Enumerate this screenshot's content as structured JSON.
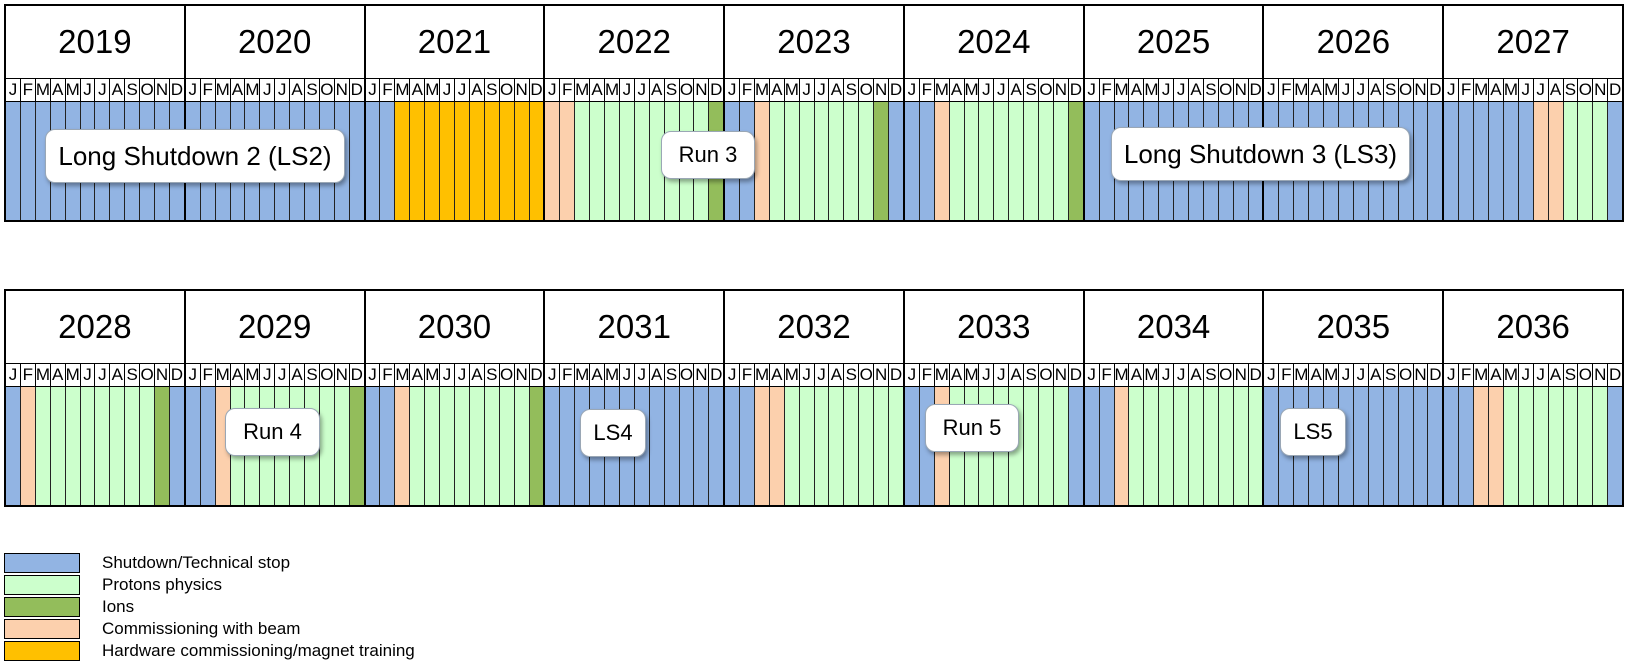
{
  "colors": {
    "S": "#92b4e3",
    "P": "#ccffcc",
    "I": "#93bd5b",
    "C": "#fcd0ad",
    "H": "#ffc000"
  },
  "month_letters": [
    "J",
    "F",
    "M",
    "A",
    "M",
    "J",
    "J",
    "A",
    "S",
    "O",
    "N",
    "D"
  ],
  "rows": [
    {
      "years": [
        {
          "label": "2019",
          "months": "SSSSSSSSSSSS"
        },
        {
          "label": "2020",
          "months": "SSSSSSSSSSSS"
        },
        {
          "label": "2021",
          "months": "SSHHHHHHHHHH"
        },
        {
          "label": "2022",
          "months": "CCPPPPPPPPPI"
        },
        {
          "label": "2023",
          "months": "SSCPPPPPPPIS"
        },
        {
          "label": "2024",
          "months": "SSCPPPPPPPPI"
        },
        {
          "label": "2025",
          "months": "SSSSSSSSSSSS"
        },
        {
          "label": "2026",
          "months": "SSSSSSSSSSSS"
        },
        {
          "label": "2027",
          "months": "SSSSSSCCPPPS"
        }
      ],
      "callouts": [
        {
          "label": "Long Shutdown 2 (LS2)",
          "size": "large"
        },
        {
          "label": "Run 3",
          "size": "small"
        },
        {
          "label": "Long Shutdown 3 (LS3)",
          "size": "large"
        }
      ]
    },
    {
      "years": [
        {
          "label": "2028",
          "months": "SCPPPPPPPPIS"
        },
        {
          "label": "2029",
          "months": "SSCPPPPPPPPI"
        },
        {
          "label": "2030",
          "months": "SSCPPPPPPPPI"
        },
        {
          "label": "2031",
          "months": "SSSSSSSSSSSS"
        },
        {
          "label": "2032",
          "months": "SSCCPPPPPPPP"
        },
        {
          "label": "2033",
          "months": "SSCPPPPPPPPS"
        },
        {
          "label": "2034",
          "months": "SSCPPPPPPPPP"
        },
        {
          "label": "2035",
          "months": "SSSSSSSSSSSS"
        },
        {
          "label": "2036",
          "months": "SSCCPPPPPPPS"
        }
      ],
      "callouts": [
        {
          "label": "Run 4",
          "size": "small"
        },
        {
          "label": "LS4",
          "size": "small"
        },
        {
          "label": "Run 5",
          "size": "small"
        },
        {
          "label": "LS5",
          "size": "small"
        }
      ]
    }
  ],
  "legend": [
    {
      "key": "S",
      "label": "Shutdown/Technical stop"
    },
    {
      "key": "P",
      "label": "Protons physics"
    },
    {
      "key": "I",
      "label": "Ions"
    },
    {
      "key": "C",
      "label": "Commissioning with beam"
    },
    {
      "key": "H",
      "label": "Hardware commissioning/magnet training"
    }
  ]
}
